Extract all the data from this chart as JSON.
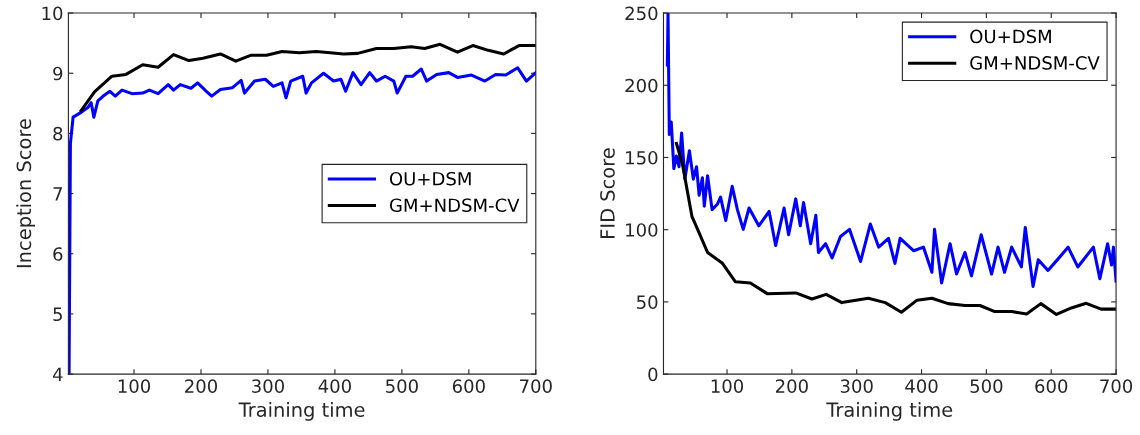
{
  "chart_data": [
    {
      "type": "line",
      "xlabel": "Training time",
      "ylabel": "Inception Score",
      "xlim": [
        2,
        700
      ],
      "ylim": [
        4,
        10
      ],
      "xticks": [
        100,
        200,
        300,
        400,
        500,
        600,
        700
      ],
      "yticks": [
        4,
        5,
        6,
        7,
        8,
        9,
        10
      ],
      "grid": false,
      "legend": "right",
      "marker": "none",
      "line_style": "solid",
      "series": [
        {
          "name": "OU+DSM",
          "color": "#0000ff",
          "x": [
            3,
            5,
            9,
            21,
            31,
            36,
            40,
            46,
            54,
            64,
            72,
            82,
            97,
            113,
            123,
            136,
            151,
            159,
            169,
            185,
            195,
            208,
            216,
            229,
            247,
            260,
            265,
            280,
            296,
            308,
            321,
            327,
            334,
            352,
            357,
            365,
            383,
            398,
            409,
            416,
            427,
            439,
            452,
            462,
            475,
            488,
            493,
            506,
            516,
            529,
            537,
            552,
            570,
            583,
            604,
            624,
            640,
            655,
            673,
            686,
            700
          ],
          "values": [
            4.0,
            7.83,
            8.27,
            8.35,
            8.43,
            8.51,
            8.27,
            8.54,
            8.62,
            8.7,
            8.62,
            8.72,
            8.66,
            8.67,
            8.72,
            8.66,
            8.81,
            8.72,
            8.81,
            8.75,
            8.84,
            8.7,
            8.62,
            8.73,
            8.76,
            8.88,
            8.67,
            8.87,
            8.9,
            8.78,
            8.84,
            8.59,
            8.87,
            8.95,
            8.67,
            8.84,
            9.0,
            8.87,
            8.9,
            8.7,
            9.01,
            8.81,
            9.01,
            8.87,
            8.95,
            8.87,
            8.67,
            8.95,
            8.95,
            9.07,
            8.87,
            8.98,
            9.01,
            8.93,
            8.97,
            8.87,
            8.98,
            8.97,
            9.09,
            8.87,
            9.01
          ]
        },
        {
          "name": "GM+NDSM-CV",
          "color": "#000000",
          "x": [
            21,
            41,
            67,
            88,
            113,
            136,
            159,
            182,
            203,
            229,
            252,
            275,
            298,
            321,
            347,
            372,
            393,
            413,
            434,
            462,
            488,
            514,
            534,
            557,
            583,
            606,
            629,
            652,
            675,
            700
          ],
          "values": [
            8.38,
            8.69,
            8.95,
            8.98,
            9.14,
            9.1,
            9.31,
            9.21,
            9.25,
            9.32,
            9.2,
            9.3,
            9.3,
            9.36,
            9.34,
            9.36,
            9.34,
            9.32,
            9.33,
            9.41,
            9.41,
            9.44,
            9.41,
            9.48,
            9.35,
            9.46,
            9.38,
            9.32,
            9.46,
            9.46
          ]
        }
      ]
    },
    {
      "type": "line",
      "xlabel": "Training time",
      "ylabel": "FID Score",
      "xlim": [
        2,
        700
      ],
      "ylim": [
        0,
        250
      ],
      "xticks": [
        100,
        200,
        300,
        400,
        500,
        600,
        700
      ],
      "yticks": [
        0,
        50,
        100,
        150,
        200,
        250
      ],
      "grid": false,
      "legend": "top right",
      "marker": "none",
      "line_style": "solid",
      "series": [
        {
          "name": "OU+DSM",
          "color": "#0000ff",
          "x": [
            8,
            9,
            11,
            14,
            18,
            22,
            26,
            30,
            35,
            42,
            48,
            53,
            57,
            62,
            65,
            70,
            77,
            85,
            90,
            98,
            108,
            116,
            125,
            134,
            149,
            165,
            175,
            188,
            195,
            206,
            213,
            218,
            229,
            237,
            241,
            252,
            262,
            275,
            289,
            306,
            321,
            334,
            349,
            359,
            367,
            388,
            403,
            416,
            420,
            431,
            444,
            454,
            467,
            477,
            492,
            508,
            518,
            528,
            539,
            554,
            560,
            572,
            580,
            595,
            613,
            626,
            641,
            665,
            675,
            687,
            693,
            696,
            700
          ],
          "values": [
            214,
            250,
            166,
            174.5,
            142.3,
            151,
            143.6,
            167,
            135,
            154.7,
            135,
            143.6,
            123.8,
            136,
            116.3,
            137.4,
            113.9,
            117.6,
            122.5,
            106.4,
            130,
            113.9,
            100.2,
            115,
            102.7,
            112.6,
            89,
            115,
            96.5,
            121.3,
            102.7,
            118.8,
            90.3,
            110,
            84.2,
            90.3,
            80.4,
            95.3,
            100.2,
            78,
            103.9,
            87.9,
            94,
            76.7,
            94,
            85.4,
            87.9,
            70.5,
            100.2,
            63.1,
            90.3,
            69.3,
            84.2,
            68,
            96.5,
            69.3,
            87.9,
            70.5,
            87.9,
            74.2,
            101.5,
            60.6,
            79.2,
            71.8,
            81,
            87.9,
            74.2,
            87.9,
            66.1,
            90.3,
            75.5,
            87.9,
            64.4
          ]
        },
        {
          "name": "GM+NDSM-CV",
          "color": "#000000",
          "x": [
            22,
            31,
            46,
            57,
            70,
            93,
            113,
            136,
            162,
            206,
            231,
            253,
            277,
            318,
            344,
            369,
            393,
            416,
            441,
            467,
            490,
            513,
            539,
            562,
            584,
            608,
            631,
            654,
            677,
            700
          ],
          "values": [
            159.7,
            146,
            109,
            97.8,
            84.2,
            76.7,
            63.9,
            63.1,
            55.7,
            56.2,
            52,
            55.2,
            49.5,
            52.5,
            49.5,
            42.8,
            51.2,
            52.5,
            48.8,
            47.5,
            47.5,
            43.3,
            43.3,
            41.6,
            48.8,
            41.3,
            45.8,
            49,
            45,
            45
          ]
        }
      ]
    }
  ]
}
